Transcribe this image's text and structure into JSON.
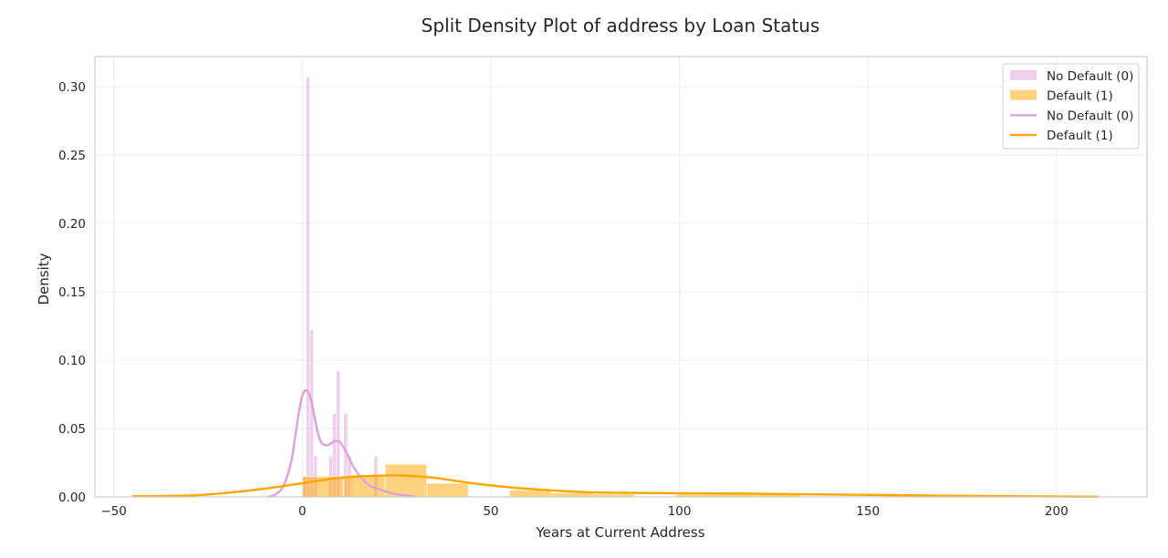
{
  "chart_data": {
    "type": "bar",
    "title": "Split Density Plot of address by Loan Status",
    "xlabel": "Years at Current Address",
    "ylabel": "Density",
    "xlim": [
      -55,
      224
    ],
    "ylim": [
      0,
      0.322
    ],
    "xticks": [
      -50,
      0,
      50,
      100,
      150,
      200
    ],
    "yticks": [
      0.0,
      0.05,
      0.1,
      0.15,
      0.2,
      0.25,
      0.3
    ],
    "ytick_labels": [
      "0.00",
      "0.05",
      "0.10",
      "0.15",
      "0.20",
      "0.25",
      "0.30"
    ],
    "grid": true,
    "legend_position": "top-right",
    "colors": {
      "no_default": "#dda0dd",
      "default": "#ffa500",
      "grid": "#ebebeb",
      "frame": "#cccccc"
    },
    "histograms": [
      {
        "name": "No Default (0)",
        "color": "#dda0dd",
        "opacity": 0.5,
        "bins": [
          {
            "x0": 0,
            "x1": 1,
            "y": 0.015
          },
          {
            "x0": 1,
            "x1": 2,
            "y": 0.307
          },
          {
            "x0": 2,
            "x1": 3,
            "y": 0.122
          },
          {
            "x0": 3,
            "x1": 4,
            "y": 0.03
          },
          {
            "x0": 7,
            "x1": 8,
            "y": 0.03
          },
          {
            "x0": 8,
            "x1": 9,
            "y": 0.061
          },
          {
            "x0": 9,
            "x1": 10,
            "y": 0.092
          },
          {
            "x0": 11,
            "x1": 12,
            "y": 0.061
          },
          {
            "x0": 12,
            "x1": 13,
            "y": 0.03
          },
          {
            "x0": 19,
            "x1": 20,
            "y": 0.03
          }
        ]
      },
      {
        "name": "Default (1)",
        "color": "#ffa500",
        "opacity": 0.5,
        "bins": [
          {
            "x0": -45,
            "x1": -34,
            "y": 0.001
          },
          {
            "x0": 0,
            "x1": 11,
            "y": 0.015
          },
          {
            "x0": 11,
            "x1": 22,
            "y": 0.016
          },
          {
            "x0": 22,
            "x1": 33,
            "y": 0.024
          },
          {
            "x0": 33,
            "x1": 44,
            "y": 0.01
          },
          {
            "x0": 55,
            "x1": 66,
            "y": 0.005
          },
          {
            "x0": 66,
            "x1": 77,
            "y": 0.003
          },
          {
            "x0": 77,
            "x1": 88,
            "y": 0.002
          },
          {
            "x0": 99,
            "x1": 110,
            "y": 0.002
          },
          {
            "x0": 110,
            "x1": 121,
            "y": 0.002
          },
          {
            "x0": 121,
            "x1": 132,
            "y": 0.002
          },
          {
            "x0": 154,
            "x1": 165,
            "y": 0.001
          },
          {
            "x0": 165,
            "x1": 176,
            "y": 0.001
          },
          {
            "x0": 176,
            "x1": 187,
            "y": 0.001
          },
          {
            "x0": 198,
            "x1": 211,
            "y": 0.001
          }
        ]
      }
    ],
    "series": [
      {
        "name": "No Default (0)",
        "type": "line",
        "color": "#dda0dd",
        "x": [
          -9,
          -7,
          -5,
          -3,
          -2,
          -1,
          0,
          1,
          2,
          3,
          4,
          5,
          6,
          7,
          8,
          9,
          10,
          11,
          12,
          13,
          14,
          16,
          18,
          20,
          22,
          25,
          28,
          30
        ],
        "y": [
          0.0,
          0.002,
          0.008,
          0.025,
          0.042,
          0.06,
          0.074,
          0.078,
          0.074,
          0.062,
          0.048,
          0.04,
          0.038,
          0.038,
          0.04,
          0.041,
          0.04,
          0.036,
          0.031,
          0.025,
          0.02,
          0.013,
          0.008,
          0.006,
          0.004,
          0.002,
          0.001,
          0.0
        ]
      },
      {
        "name": "Default (1)",
        "type": "line",
        "color": "#ffa500",
        "x": [
          -45,
          -30,
          -20,
          -10,
          0,
          10,
          20,
          28,
          35,
          45,
          55,
          65,
          75,
          85,
          100,
          115,
          130,
          150,
          175,
          200,
          211
        ],
        "y": [
          0.0005,
          0.001,
          0.003,
          0.006,
          0.01,
          0.014,
          0.0155,
          0.0155,
          0.014,
          0.01,
          0.007,
          0.005,
          0.0035,
          0.003,
          0.0027,
          0.0025,
          0.002,
          0.0015,
          0.0008,
          0.0003,
          0.0001
        ]
      }
    ],
    "legend": [
      {
        "label": "No Default (0)",
        "kind": "patch",
        "color": "#dda0dd"
      },
      {
        "label": "Default (1)",
        "kind": "patch",
        "color": "#ffa500"
      },
      {
        "label": "No Default (0)",
        "kind": "line",
        "color": "#dda0dd"
      },
      {
        "label": "Default (1)",
        "kind": "line",
        "color": "#ffa500"
      }
    ]
  }
}
